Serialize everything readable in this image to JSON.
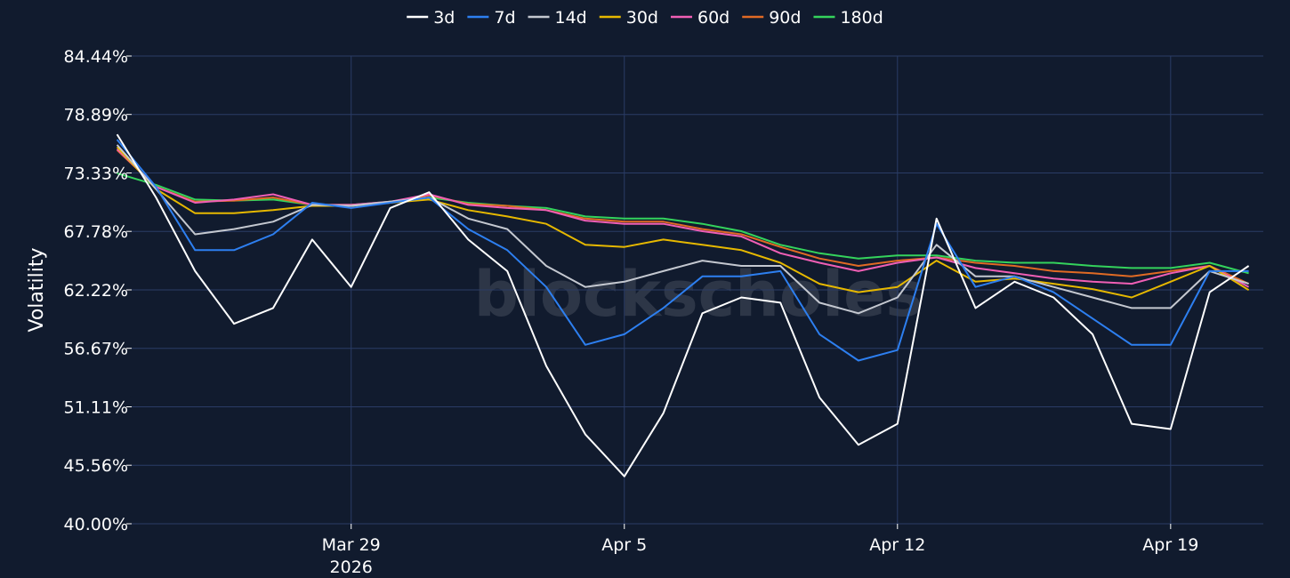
{
  "chart_data": {
    "type": "line",
    "title": "",
    "xlabel": "",
    "ylabel": "Volatility",
    "ylim": [
      40.0,
      84.44
    ],
    "xlim": [
      "2026-03-23T09:00",
      "2026-04-21T09:00"
    ],
    "grid": true,
    "legend_position": "top-center",
    "watermark": "blockscholes",
    "y_ticks": [
      "40.00%",
      "45.56%",
      "51.11%",
      "56.67%",
      "62.22%",
      "67.78%",
      "73.33%",
      "78.89%",
      "84.44%"
    ],
    "x_ticks": [
      {
        "date": "2026-03-29",
        "label": "Mar 29",
        "sublabel": "2026"
      },
      {
        "date": "2026-04-05",
        "label": "Apr 5",
        "sublabel": ""
      },
      {
        "date": "2026-04-12",
        "label": "Apr 12",
        "sublabel": ""
      },
      {
        "date": "2026-04-19",
        "label": "Apr 19",
        "sublabel": ""
      }
    ],
    "x": [
      "2026-03-23",
      "2026-03-24",
      "2026-03-25",
      "2026-03-26",
      "2026-03-27",
      "2026-03-28",
      "2026-03-29",
      "2026-03-30",
      "2026-03-31",
      "2026-04-01",
      "2026-04-02",
      "2026-04-03",
      "2026-04-04",
      "2026-04-05",
      "2026-04-06",
      "2026-04-07",
      "2026-04-08",
      "2026-04-09",
      "2026-04-10",
      "2026-04-11",
      "2026-04-12",
      "2026-04-13",
      "2026-04-14",
      "2026-04-15",
      "2026-04-16",
      "2026-04-17",
      "2026-04-18",
      "2026-04-19",
      "2026-04-20",
      "2026-04-21"
    ],
    "series": [
      {
        "name": "3d",
        "color": "#ffffff",
        "values": [
          77.0,
          71.0,
          64.0,
          59.0,
          60.5,
          67.0,
          62.5,
          70.0,
          71.5,
          67.0,
          64.0,
          55.0,
          48.5,
          44.5,
          50.5,
          60.0,
          61.5,
          61.0,
          52.0,
          47.5,
          49.5,
          69.0,
          60.5,
          63.0,
          61.5,
          58.0,
          49.5,
          49.0,
          62.0,
          64.5
        ]
      },
      {
        "name": "7d",
        "color": "#2d7ff0",
        "values": [
          76.5,
          72.0,
          66.0,
          66.0,
          67.5,
          70.5,
          70.0,
          70.5,
          71.0,
          68.0,
          66.0,
          62.5,
          57.0,
          58.0,
          60.5,
          63.5,
          63.5,
          64.0,
          58.0,
          55.5,
          56.5,
          68.5,
          62.5,
          63.5,
          62.0,
          59.5,
          57.0,
          57.0,
          64.0,
          64.0
        ]
      },
      {
        "name": "14d",
        "color": "#c4c8d0",
        "values": [
          76.0,
          71.8,
          67.5,
          68.0,
          68.7,
          70.3,
          70.2,
          70.6,
          71.0,
          69.0,
          68.0,
          64.5,
          62.5,
          63.0,
          64.0,
          65.0,
          64.5,
          64.5,
          61.0,
          60.0,
          61.5,
          66.5,
          63.5,
          63.5,
          62.5,
          61.5,
          60.5,
          60.5,
          64.0,
          62.8
        ]
      },
      {
        "name": "30d",
        "color": "#e6b800",
        "values": [
          75.8,
          71.8,
          69.5,
          69.5,
          69.8,
          70.2,
          70.2,
          70.5,
          70.8,
          69.8,
          69.2,
          68.5,
          66.5,
          66.3,
          67.0,
          66.5,
          66.0,
          64.8,
          62.8,
          62.0,
          62.5,
          65.0,
          63.0,
          63.3,
          62.8,
          62.3,
          61.5,
          63.0,
          64.5,
          62.2
        ]
      },
      {
        "name": "60d",
        "color": "#f05fb5",
        "values": [
          75.6,
          72.0,
          70.5,
          70.8,
          71.3,
          70.3,
          70.3,
          70.6,
          71.3,
          70.3,
          70.0,
          69.8,
          68.8,
          68.5,
          68.5,
          67.8,
          67.3,
          65.7,
          64.8,
          64.0,
          64.8,
          65.3,
          64.3,
          63.8,
          63.3,
          63.0,
          62.8,
          63.8,
          64.5,
          62.5
        ]
      },
      {
        "name": "90d",
        "color": "#e06a24",
        "values": [
          75.5,
          72.0,
          70.6,
          70.7,
          71.0,
          70.3,
          70.3,
          70.5,
          71.2,
          70.4,
          70.2,
          69.8,
          69.0,
          68.7,
          68.7,
          68.0,
          67.5,
          66.3,
          65.2,
          64.5,
          65.0,
          65.3,
          64.8,
          64.5,
          64.0,
          63.8,
          63.5,
          64.0,
          64.5,
          62.8
        ]
      },
      {
        "name": "180d",
        "color": "#34d35c",
        "values": [
          73.3,
          72.2,
          70.8,
          70.7,
          70.8,
          70.3,
          70.3,
          70.6,
          71.0,
          70.5,
          70.2,
          70.0,
          69.2,
          69.0,
          69.0,
          68.5,
          67.8,
          66.5,
          65.7,
          65.2,
          65.5,
          65.5,
          65.0,
          64.8,
          64.8,
          64.5,
          64.3,
          64.3,
          64.8,
          63.8
        ]
      }
    ]
  }
}
